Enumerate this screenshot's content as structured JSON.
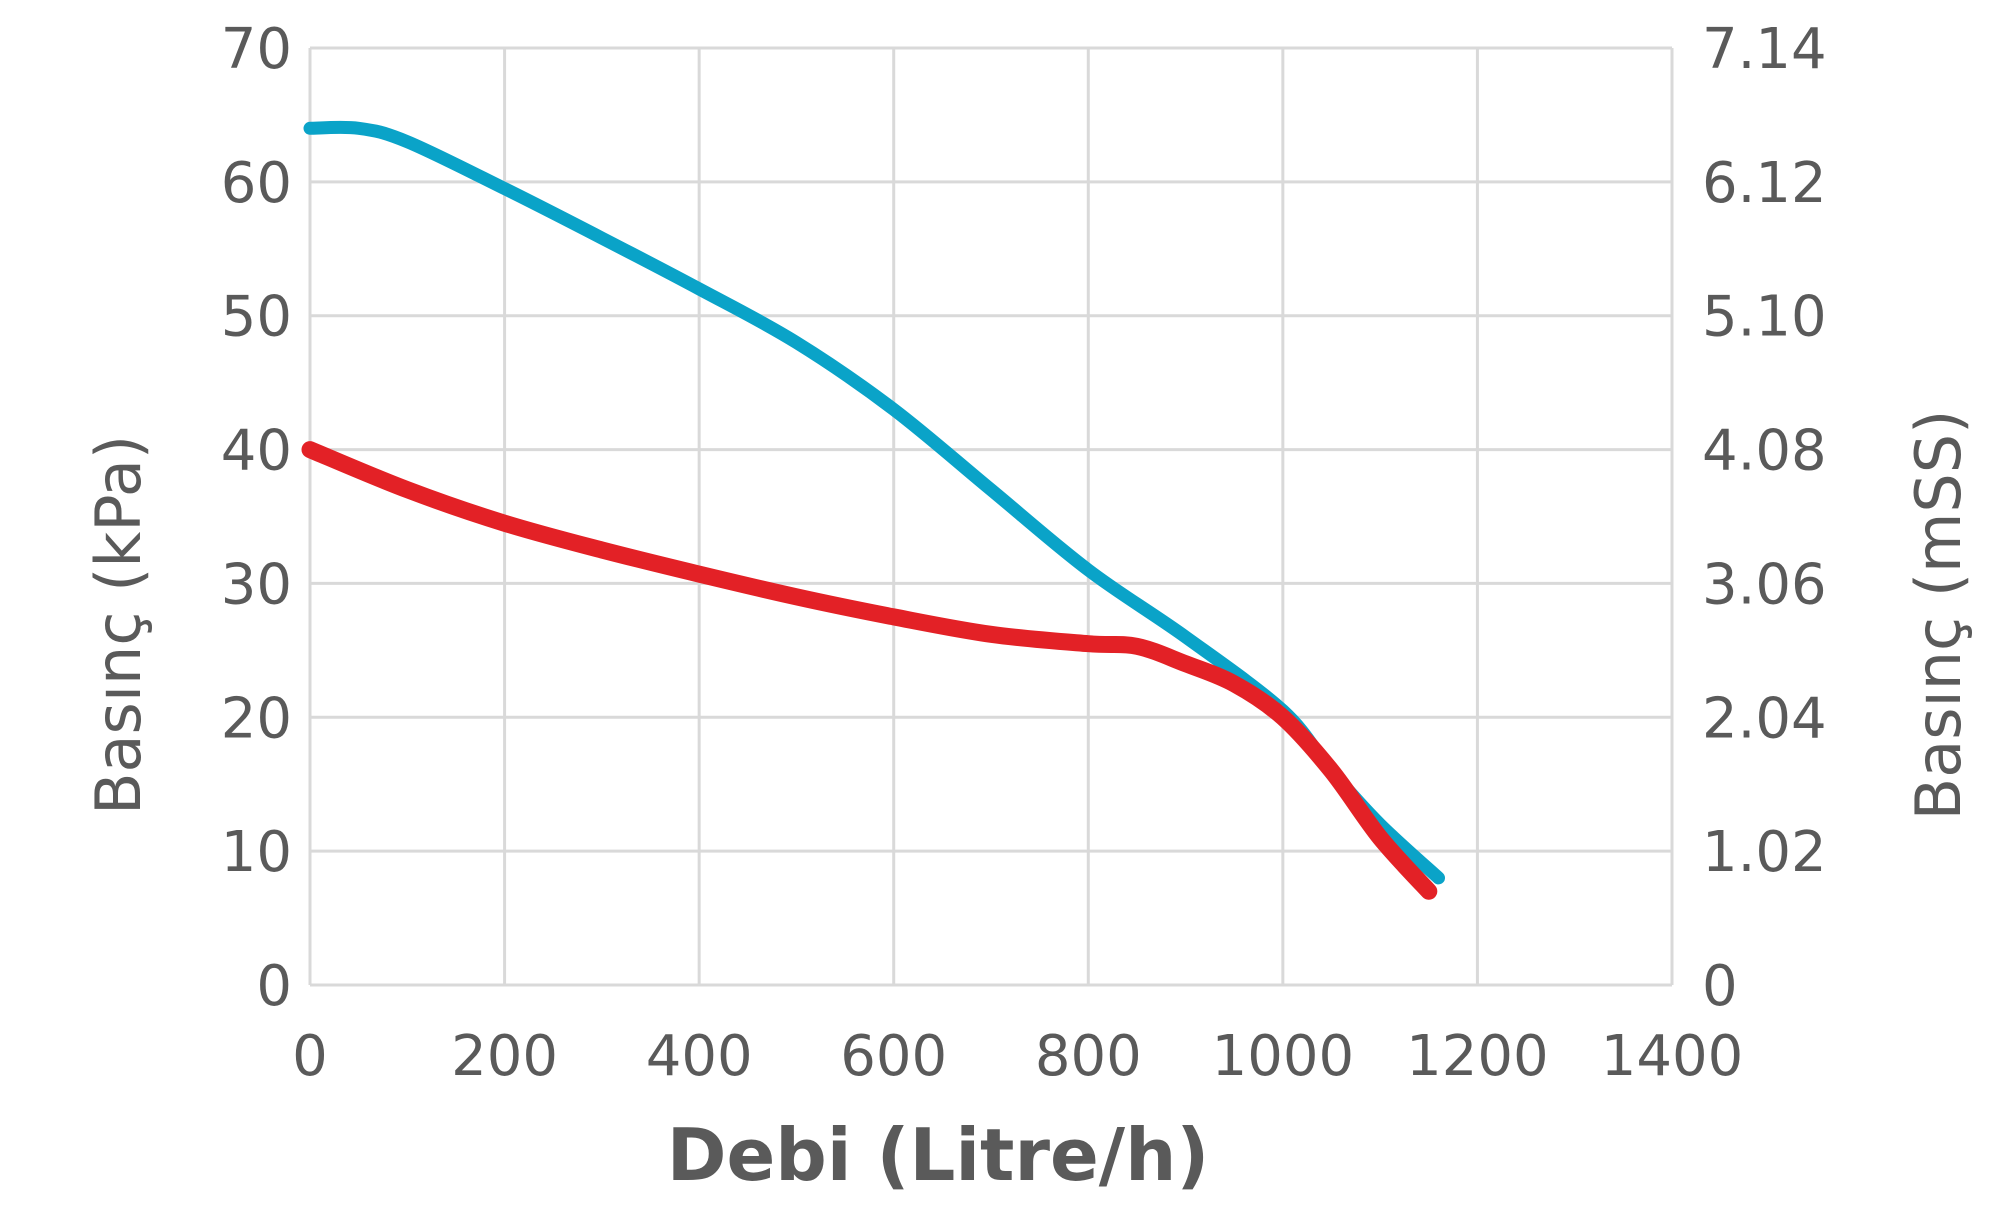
{
  "chart_data": {
    "type": "line",
    "xlabel": "Debi (Litre/h)",
    "ylabel_left": "Basınç (kPa)",
    "ylabel_right": "Basınç (mSS)",
    "xlim": [
      0,
      1400
    ],
    "ylim": [
      0,
      70
    ],
    "x_ticks": [
      "0",
      "200",
      "400",
      "600",
      "800",
      "1000",
      "1200",
      "1400"
    ],
    "y_ticks_left": [
      "0",
      "10",
      "20",
      "30",
      "40",
      "50",
      "60",
      "70"
    ],
    "y_ticks_right": [
      "0",
      "1.02",
      "2.04",
      "3.06",
      "4.08",
      "5.10",
      "6.12",
      "7.14"
    ],
    "grid": true,
    "series": [
      {
        "color": "#0aa3c8",
        "x": [
          0,
          50,
          100,
          200,
          300,
          400,
          500,
          600,
          700,
          800,
          900,
          1000,
          1050,
          1100,
          1160
        ],
        "y": [
          64,
          64,
          63,
          59.5,
          55.8,
          52,
          48,
          43,
          37,
          31,
          26,
          20.5,
          16,
          12,
          8
        ]
      },
      {
        "color": "#e32126",
        "x": [
          0,
          100,
          200,
          300,
          400,
          500,
          600,
          700,
          800,
          850,
          900,
          950,
          1000,
          1050,
          1100,
          1150
        ],
        "y": [
          40,
          37,
          34.5,
          32.5,
          30.7,
          29,
          27.5,
          26.2,
          25.5,
          25.3,
          24,
          22.5,
          20,
          16,
          11,
          7
        ]
      }
    ]
  }
}
